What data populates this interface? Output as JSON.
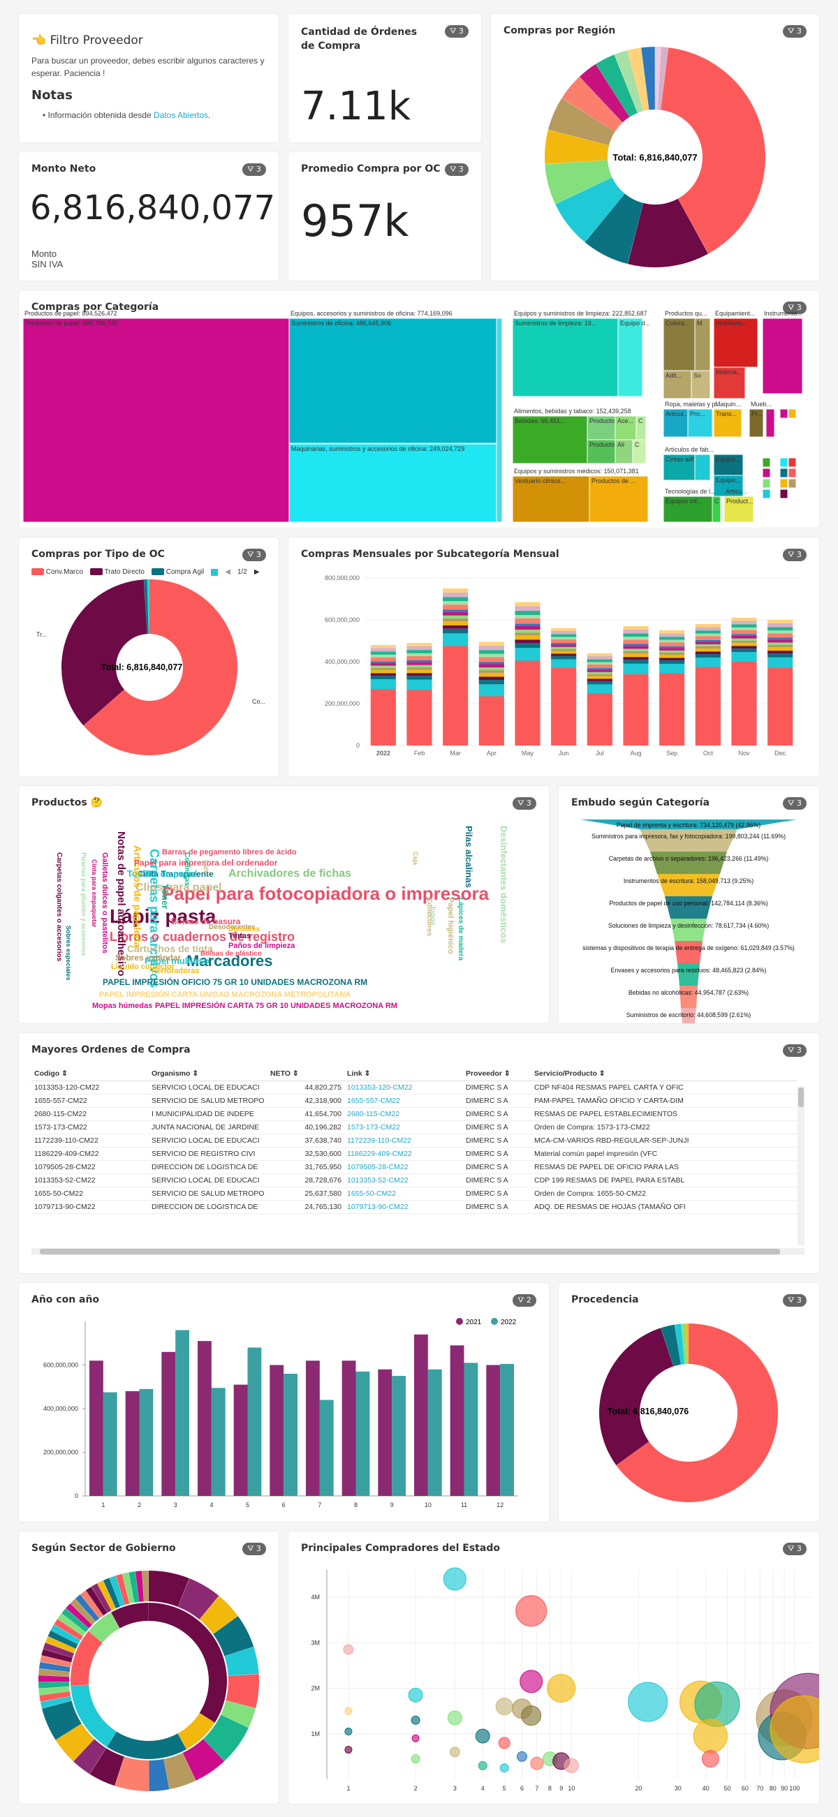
{
  "filter_card": {
    "icon": "👈",
    "title": "Filtro Proveedor",
    "desc": "Para buscar un proveedor, debes escribir algunos caracteres y esperar. Paciencia !",
    "notes_title": "Notas",
    "note_prefix": "Información obtenida desde ",
    "note_link": "Datos Abiertos",
    "note_suffix": "."
  },
  "kpis": {
    "ordenes": {
      "title": "Cantidad de Órdenes de Compra",
      "value": "7.11k",
      "filter": "3"
    },
    "monto": {
      "title": "Monto Neto",
      "value": "6,816,840,077",
      "sub": "Monto SIN IVA",
      "filter": "3"
    },
    "promedio": {
      "title": "Promedio Compra por OC",
      "value": "957k",
      "filter": "3"
    }
  },
  "region": {
    "title": "Compras por Región",
    "filter": "3",
    "center": "Total: 6,816,840,077"
  },
  "categoria": {
    "title": "Compras por Categoría",
    "filter": "3",
    "labels": [
      "Productos de papel: 894,526,472",
      "Productos de papel: 885,785,735",
      "Equipos, accesorios y suministros de oficina: 774,169,096",
      "Suministros de oficina: 486,645,906",
      "Maquinarias, suministros y accesorios de oficina: 249,024,729",
      "Equipos y suministros de limpieza: 222,852,687",
      "Suministros de limpieza: 16...",
      "Equipo d...",
      "Alimentos, bebidas y tabaco: 152,439,258",
      "Bebidas: 66,451...",
      "Productos...",
      "Ace...",
      "C",
      "Productos...",
      "Ali",
      "C",
      "Equipos y suministros médicos: 150,071,381",
      "Vestuario clínico...",
      "Productos de ...",
      "Productos qu...",
      "Colora...",
      "M",
      "Adit...",
      "So",
      "Equipamient...",
      "Mobiliario...",
      "Materia...",
      "Instrumento...",
      "Ropa, maletas y p...",
      "Artícul...",
      "Pro...",
      "Maquin...",
      "Trans...",
      "Mueb...",
      "Pr...",
      "U",
      "M",
      "Artículos de fab...",
      "Cintas adhesi...",
      "Equipo...",
      "Equipo...",
      "Arti",
      "Me",
      "R",
      "S",
      "O",
      "Tecnologías de l...",
      "Equipos inf...",
      "C",
      "Artícu...",
      "S",
      "Product..."
    ]
  },
  "tipo_oc": {
    "title": "Compras por Tipo de OC",
    "filter": "3",
    "legend": [
      "Conv.Marco",
      "Trato Directo",
      "Compra Agil"
    ],
    "pager": "1/2",
    "center": "Total: 6,816,840,077",
    "label_left": "Tr...",
    "label_right": "Co..."
  },
  "mensual": {
    "title": "Compras Mensuales por Subcategoría Mensual",
    "filter": "3"
  },
  "productos": {
    "title": "Productos",
    "emoji": "🤔",
    "filter": "3",
    "words": [
      "Papel para fotocopiadora o impresora",
      "Lápiz pasta",
      "Marcadores",
      "Carpetas para archivos",
      "Libros o cuadernos de registro",
      "Archivadores de fichas",
      "Clips para papel",
      "Notas de papel autoadhesivo",
      "Cinta Transparente",
      "Toallas de papel",
      "Artículos de papelería",
      "Tóner",
      "Cartuchos de tinta",
      "Papel multiuso",
      "Sobres estándar",
      "Bolsas de basura",
      "Tintas",
      "Desinfectantes domésticos",
      "Pilas alcalinas",
      "Papel para impresora del ordenador",
      "Barras de pegamento libres de ácido",
      "Galletas dulces o pastelitos",
      "Carpetas colgantes o accesorios",
      "Pizarras para plumón y accesorios",
      "Cinta para empaquetar",
      "Papel higiénico",
      "Lápices de madera",
      "Paños de limpieza",
      "Bolsas de plástico",
      "Liquido corrector",
      "Perforadoras",
      "Desodorantes",
      "Divisores",
      "Conectores",
      "Sobres especiales",
      "Cocinetas",
      "Café",
      "Caja",
      "Jugos",
      "PAPEL IMPRESIÓN OFICIO 75 GR 10 UNIDADES MACROZONA RM",
      "PAPEL IMPRESIÓN CARTA UNIDAD MACROZONA METROPOLITANA",
      "PAPEL IMPRESIÓN CARTA 75 GR 10 UNIDADES MACROZONA RM",
      "Mopas húmedas"
    ]
  },
  "embudo": {
    "title": "Embudo según Categoría",
    "filter": "3",
    "rows": [
      "Papel de imprenta y escritura: 734,120,479 (42.96%)",
      "Suministros para impresora, fax y fotocopiadora: 199,803,244 (11.69%)",
      "Carpetas de archivo o separadores: 196,423,266 (11.49%)",
      "Instrumentos de escritura: 158,049,713 (9.25%)",
      "Productos de papel de uso personal: 142,784,114 (8.36%)",
      "Soluciones de limpieza y desinfección: 78,617,734 (4.60%)",
      "sistemas y dispositivos de terapia de entrega de oxígeno: 61,029,849 (3.57%)",
      "Envases y accesorios para residuos: 48,465,823 (2.84%)",
      "Bebidas no alcohólicas: 44,954,787 (2.63%)",
      "Suministros de escritorio: 44,608,599 (2.61%)"
    ]
  },
  "ordenes": {
    "title": "Mayores Ordenes de Compra",
    "filter": "3",
    "headers": [
      "Codigo",
      "Organismo",
      "NETO",
      "Link",
      "Proveedor",
      "Servicio/Producto"
    ],
    "rows": [
      [
        "1013353-120-CM22",
        "SERVICIO LOCAL DE EDUCACI",
        "44,820,275",
        "1013353-120-CM22",
        "DIMERC S A",
        "CDP NF404 RESMAS PAPEL CARTA Y OFIC"
      ],
      [
        "1655-557-CM22",
        "SERVICIO DE SALUD METROPO",
        "42,318,900",
        "1655-557-CM22",
        "DIMERC S A",
        "PAM-PAPEL TAMAÑO OFICIO Y CARTA-DIM"
      ],
      [
        "2680-115-CM22",
        "I MUNICIPALIDAD DE INDEPE",
        "41,654,700",
        "2680-115-CM22",
        "DIMERC S A",
        "RESMAS DE PAPEL ESTABLECIMIENTOS"
      ],
      [
        "1573-173-CM22",
        "JUNTA NACIONAL DE JARDINE",
        "40,196,282",
        "1573-173-CM22",
        "DIMERC S A",
        "Orden de Compra: 1573-173-CM22"
      ],
      [
        "1172239-110-CM22",
        "SERVICIO LOCAL DE EDUCACI",
        "37,638,740",
        "1172239-110-CM22",
        "DIMERC S A",
        "MCA-CM-VARIOS RBD-REGULAR-SEP-JUNJI"
      ],
      [
        "1186229-409-CM22",
        "SERVICIO DE REGISTRO CIVI",
        "32,530,600",
        "1186229-409-CM22",
        "DIMERC S A",
        "Material común papel impresión (VFC"
      ],
      [
        "1079505-28-CM22",
        "DIRECCION DE LOGISTICA DE",
        "31,765,950",
        "1079505-28-CM22",
        "DIMERC S A",
        "RESMAS DE PAPEL DE OFICIO PARA LAS"
      ],
      [
        "1013353-52-CM22",
        "SERVICIO LOCAL DE EDUCACI",
        "28,728,676",
        "1013353-52-CM22",
        "DIMERC S A",
        "CDP 199 RESMAS DE PAPEL PARA ESTABL"
      ],
      [
        "1655-50-CM22",
        "SERVICIO DE SALUD METROPO",
        "25,637,580",
        "1655-50-CM22",
        "DIMERC S A",
        "Orden de Compra: 1655-50-CM22"
      ],
      [
        "1079713-90-CM22",
        "DIRECCION DE LOGISTICA DE",
        "24,765,130",
        "1079713-90-CM22",
        "DIMERC S A",
        "ADQ. DE RESMAS DE HOJAS (TAMAÑO OFI"
      ]
    ]
  },
  "anual": {
    "title": "Año con año",
    "filter": "2",
    "legend": [
      "2021",
      "2022"
    ]
  },
  "procedencia": {
    "title": "Procedencia",
    "filter": "3",
    "center": "Total: 6,816,840,076"
  },
  "sector": {
    "title": "Según Sector de Gobierno",
    "filter": "3"
  },
  "compradores": {
    "title": "Principales Compradores del Estado",
    "filter": "3"
  },
  "colors": {
    "red": "#fc5a5a",
    "maroon": "#6e0a46",
    "teal": "#0a7281",
    "cyan": "#20c9d6",
    "magenta": "#cc0c8a",
    "gold": "#f2b80d",
    "purple": "#8b2a72",
    "tealbar": "#3aa0a2"
  },
  "chart_data": [
    {
      "type": "bar",
      "title": "Compras Mensuales por Subcategoría Mensual",
      "categories": [
        "2022",
        "Feb",
        "Mar",
        "Apr",
        "May",
        "Jun",
        "Jul",
        "Aug",
        "Sep",
        "Oct",
        "Nov",
        "Dec"
      ],
      "series": [
        {
          "values": [
            270000000,
            265000000,
            475000000,
            235000000,
            405000000,
            370000000,
            250000000,
            340000000,
            345000000,
            375000000,
            400000000,
            370000000
          ]
        }
      ],
      "totals": [
        480000000,
        490000000,
        750000000,
        495000000,
        685000000,
        560000000,
        440000000,
        570000000,
        550000000,
        580000000,
        610000000,
        600000000
      ],
      "ylim": [
        0,
        800000000
      ],
      "yticks": [
        "0",
        "200,000,000",
        "400,000,000",
        "600,000,000",
        "800,000,000"
      ]
    },
    {
      "type": "bar",
      "title": "Año con año",
      "categories": [
        "1",
        "2",
        "3",
        "4",
        "5",
        "6",
        "7",
        "8",
        "9",
        "10",
        "11",
        "12"
      ],
      "series": [
        {
          "name": "2021",
          "values": [
            620000000,
            480000000,
            660000000,
            710000000,
            510000000,
            600000000,
            620000000,
            620000000,
            580000000,
            740000000,
            690000000,
            600000000
          ]
        },
        {
          "name": "2022",
          "values": [
            475000000,
            490000000,
            760000000,
            495000000,
            680000000,
            560000000,
            440000000,
            570000000,
            550000000,
            580000000,
            610000000,
            605000000
          ]
        }
      ],
      "ylim": [
        0,
        800000000
      ],
      "yticks": [
        "0",
        "200,000,000",
        "400,000,000",
        "600,000,000"
      ]
    },
    {
      "type": "scatter",
      "title": "Principales Compradores del Estado",
      "xticks": [
        "1",
        "2",
        "3",
        "4",
        "5",
        "6",
        "7",
        "8",
        "9",
        "10",
        "20",
        "30",
        "40",
        "50",
        "60",
        "70",
        "80",
        "90",
        "100"
      ],
      "yticks": [
        "1M",
        "2M",
        "3M",
        "4M"
      ],
      "xlim": [
        0.8,
        120
      ],
      "ylim": [
        0,
        4600000
      ]
    }
  ]
}
